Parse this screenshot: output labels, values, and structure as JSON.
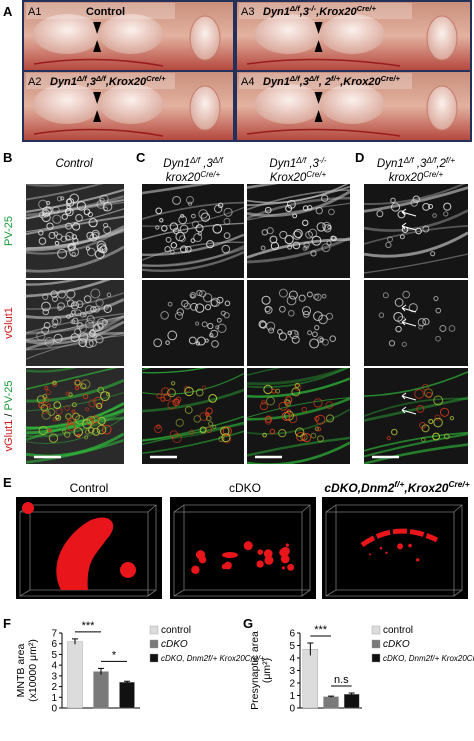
{
  "panel_a": {
    "label": "A",
    "panels": [
      {
        "id": "A1",
        "title": [
          "Control"
        ]
      },
      {
        "id": "A3",
        "title": [
          "Dyn1",
          "Δ/f",
          ",3",
          "-/-",
          ",Krox20",
          "Cre/+"
        ]
      },
      {
        "id": "A2",
        "title": [
          "Dyn1",
          "Δ/f",
          ",3",
          "Δ/f",
          ",Krox20",
          "Cre/+"
        ]
      },
      {
        "id": "A4",
        "title": [
          "Dyn1",
          "Δ/f",
          ",3",
          "Δ/f",
          ", 2",
          "f/+",
          ",Krox20",
          "Cre/+"
        ]
      }
    ]
  },
  "panel_bcd": {
    "labels": [
      "B",
      "C",
      "D"
    ],
    "headers": [
      [
        [
          "Control"
        ]
      ],
      [
        [
          "Dyn1",
          "Δ/f",
          " ,3",
          "Δ/f"
        ],
        [
          "krox20",
          "Cre/+"
        ]
      ],
      [
        [
          "Dyn1",
          "Δ/f",
          " ,3",
          "-/-"
        ],
        [
          "Krox20",
          "Cre/+"
        ]
      ],
      [
        [
          "Dyn1",
          "Δ/f",
          " ,3",
          "Δ/f",
          ",2",
          "f/+"
        ],
        [
          "krox20",
          "Cre/+"
        ]
      ]
    ],
    "row_labels": [
      "PV-25",
      "vGlut1",
      [
        "vGlut1",
        " / ",
        "PV-25"
      ]
    ]
  },
  "panel_e": {
    "label": "E",
    "titles": [
      [
        "Control"
      ],
      [
        "cDKO"
      ],
      [
        "cDKO,Dnm2",
        "f/+",
        ",Krox20",
        "Cre/+"
      ]
    ]
  },
  "chart_data": [
    {
      "type": "bar",
      "panel_label": "F",
      "ylabel": [
        "MNTB area",
        "(x10000 μm²)"
      ],
      "ylim": [
        0,
        7
      ],
      "yticks": [
        0,
        1,
        2,
        3,
        4,
        5,
        6,
        7
      ],
      "series": [
        {
          "name": "control",
          "color": "#dcdcdc",
          "values": [
            6.2
          ],
          "errors": [
            0.25
          ]
        },
        {
          "name": "cDKO",
          "color": "#7a7a7a",
          "values": [
            3.4
          ],
          "errors": [
            0.3
          ]
        },
        {
          "name": "cDKO, Dnm2f/+ Krox20Cre/+",
          "color": "#111111",
          "values": [
            2.4
          ],
          "errors": [
            0.1
          ]
        }
      ],
      "annotations": [
        "***",
        "*"
      ]
    },
    {
      "type": "bar",
      "panel_label": "G",
      "ylabel": [
        "Presynaptic area",
        "(μm²)"
      ],
      "ylim": [
        0,
        6
      ],
      "yticks": [
        0,
        1,
        2,
        3,
        4,
        5,
        6
      ],
      "series": [
        {
          "name": "control",
          "color": "#dcdcdc",
          "values": [
            4.7
          ],
          "errors": [
            0.5
          ]
        },
        {
          "name": "cDKO",
          "color": "#7a7a7a",
          "values": [
            0.9
          ],
          "errors": [
            0.05
          ]
        },
        {
          "name": "cDKO, Dnm2f/+ Krox20Cre/+",
          "color": "#111111",
          "values": [
            1.1
          ],
          "errors": [
            0.1
          ]
        }
      ],
      "annotations": [
        "***",
        "n.s"
      ]
    }
  ]
}
